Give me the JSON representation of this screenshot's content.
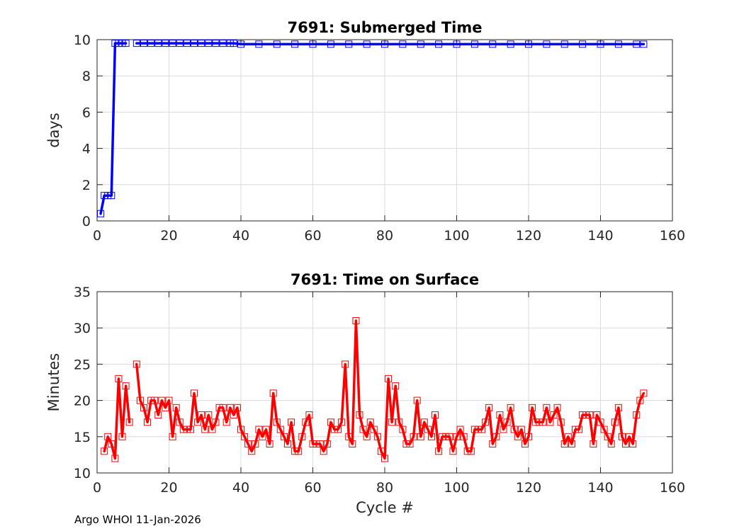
{
  "chart_data": [
    {
      "type": "line",
      "title": "7691: Submerged Time",
      "xlabel": "",
      "ylabel": "days",
      "xlim": [
        0,
        160
      ],
      "ylim": [
        0,
        10
      ],
      "xticks": [
        0,
        20,
        40,
        60,
        80,
        100,
        120,
        140,
        160
      ],
      "yticks": [
        0,
        2,
        4,
        6,
        8,
        10
      ],
      "grid": true,
      "color": "#0000ff",
      "marker": "square",
      "series": [
        {
          "name": "submerged",
          "segments": [
            {
              "x": [
                1,
                2,
                3,
                4,
                5,
                6,
                7,
                8
              ],
              "y": [
                0.4,
                1.4,
                1.4,
                1.4,
                9.8,
                9.8,
                9.8,
                9.8
              ]
            },
            {
              "x": [
                11,
                13,
                15,
                17,
                19,
                21,
                23,
                25,
                27,
                29,
                31,
                33,
                35,
                37,
                38,
                40,
                45,
                50,
                55,
                60,
                65,
                70,
                75,
                80,
                85,
                90,
                95,
                100,
                105,
                110,
                115,
                120,
                125,
                130,
                135,
                140,
                145,
                150,
                152
              ],
              "y": [
                9.8,
                9.8,
                9.8,
                9.8,
                9.8,
                9.8,
                9.8,
                9.8,
                9.8,
                9.8,
                9.8,
                9.8,
                9.8,
                9.8,
                9.8,
                9.75,
                9.75,
                9.75,
                9.75,
                9.75,
                9.75,
                9.75,
                9.75,
                9.75,
                9.75,
                9.75,
                9.75,
                9.75,
                9.75,
                9.75,
                9.75,
                9.75,
                9.75,
                9.75,
                9.75,
                9.75,
                9.75,
                9.75,
                9.75
              ]
            }
          ]
        }
      ]
    },
    {
      "type": "line",
      "title": "7691: Time on Surface",
      "xlabel": "Cycle #",
      "ylabel": "Minutes",
      "xlim": [
        0,
        160
      ],
      "ylim": [
        10,
        35
      ],
      "xticks": [
        0,
        20,
        40,
        60,
        80,
        100,
        120,
        140,
        160
      ],
      "yticks": [
        10,
        15,
        20,
        25,
        30,
        35
      ],
      "grid": true,
      "color": "#ff0000",
      "marker": "square",
      "series": [
        {
          "name": "surface",
          "segments": [
            {
              "x": [
                2,
                3,
                4,
                5,
                6,
                7,
                8,
                9
              ],
              "y": [
                13,
                15,
                14,
                12,
                23,
                15,
                22,
                17
              ]
            },
            {
              "x": [
                11,
                12,
                13,
                14,
                15,
                16,
                17,
                18,
                19,
                20,
                21,
                22,
                23,
                24,
                25,
                26,
                27,
                28,
                29,
                30,
                31,
                32,
                33,
                34,
                35,
                36,
                37,
                38,
                39,
                40,
                41,
                42,
                43,
                44,
                45,
                46,
                47,
                48,
                49,
                50,
                51,
                52,
                53,
                54,
                55,
                56,
                57,
                58,
                59,
                60,
                61,
                62,
                63,
                64,
                65,
                66,
                67,
                68,
                69,
                70,
                71,
                72,
                73,
                74,
                75,
                76,
                77,
                78,
                79,
                80,
                81,
                82,
                83,
                84,
                85,
                86,
                87,
                88,
                89,
                90,
                91,
                92,
                93,
                94,
                95,
                96,
                97,
                98,
                99,
                100,
                101,
                102,
                103,
                104,
                105,
                106,
                107,
                108,
                109,
                110,
                111,
                112,
                113,
                114,
                115,
                116,
                117,
                118,
                119,
                120,
                121,
                122,
                123,
                124,
                125,
                126,
                127,
                128,
                129,
                130,
                131,
                132,
                133,
                134,
                135,
                136,
                137,
                138,
                139,
                140,
                141,
                142,
                143,
                144,
                145,
                146,
                147,
                148,
                149,
                150,
                151,
                152
              ],
              "y": [
                25,
                20,
                19,
                17,
                20,
                20,
                18,
                20,
                19,
                20,
                15,
                19,
                17,
                16,
                16,
                16,
                21,
                17,
                18,
                16,
                18,
                16,
                17,
                19,
                19,
                17,
                19,
                18,
                19,
                16,
                15,
                14,
                13,
                14,
                16,
                15,
                16,
                14,
                21,
                17,
                16,
                15,
                14,
                17,
                13,
                13,
                15,
                17,
                18,
                14,
                14,
                14,
                13,
                14,
                17,
                16,
                16,
                17,
                25,
                15,
                14,
                31,
                18,
                16,
                15,
                17,
                16,
                15,
                13,
                12,
                23,
                17,
                22,
                17,
                16,
                14,
                14,
                15,
                20,
                15,
                17,
                16,
                15,
                18,
                13,
                15,
                15,
                15,
                13,
                15,
                16,
                15,
                13,
                13,
                16,
                16,
                16,
                17,
                19,
                14,
                15,
                18,
                16,
                17,
                19,
                16,
                15,
                16,
                14,
                15,
                19,
                17,
                17,
                17,
                19,
                17,
                18,
                19,
                17,
                14,
                15,
                14,
                16,
                16,
                18,
                18,
                18,
                14,
                18,
                17,
                16,
                15,
                14,
                17,
                19,
                15,
                14,
                15,
                14,
                18,
                20,
                21
              ]
            }
          ]
        }
      ]
    }
  ],
  "footer": {
    "text": "Argo WHOI 11-Jan-2026"
  }
}
